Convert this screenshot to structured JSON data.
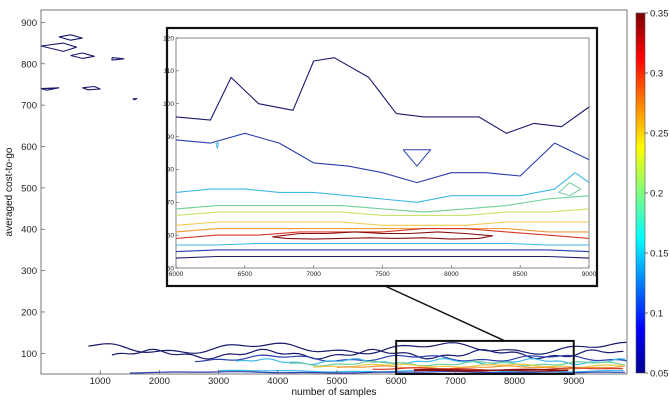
{
  "chart_data": {
    "type": "contour",
    "title": "",
    "xlabel": "number of samples",
    "ylabel": "averaged cost-to-go",
    "xlim": [
      0,
      9900
    ],
    "ylim": [
      50,
      930
    ],
    "x_ticks": [
      "1000",
      "2000",
      "3000",
      "4000",
      "5000",
      "6000",
      "7000",
      "8000",
      "9000"
    ],
    "y_ticks": [
      "100",
      "200",
      "300",
      "400",
      "500",
      "600",
      "700",
      "800",
      "900"
    ],
    "colorbar": {
      "colormap": "jet",
      "range": [
        0.05,
        0.35
      ],
      "ticks": [
        "0.05",
        "0.1",
        "0.15",
        "0.2",
        "0.25",
        "0.3",
        "0.35"
      ]
    },
    "zoom_region": {
      "x": [
        6000,
        9000
      ],
      "y": [
        50,
        130
      ]
    },
    "inset": {
      "xlim": [
        6000,
        9000
      ],
      "ylim": [
        50,
        120
      ],
      "x_ticks": [
        "6000",
        "6500",
        "7000",
        "7500",
        "8000",
        "8500",
        "9000"
      ],
      "y_ticks": [
        "50",
        "60",
        "70",
        "80",
        "90",
        "100",
        "110",
        "120"
      ],
      "contours": [
        {
          "level": 0.05,
          "color": "#1a1a6e",
          "x": [
            6000,
            6250,
            6400,
            6600,
            6850,
            7000,
            7150,
            7400,
            7600,
            7800,
            8000,
            8200,
            8400,
            8600,
            8800,
            9000
          ],
          "y": [
            96,
            95,
            108,
            100,
            98,
            113,
            114,
            108,
            97,
            96,
            96,
            96,
            91,
            94,
            93,
            99
          ]
        },
        {
          "level": 0.07,
          "color": "#2a3fb0",
          "x": [
            6000,
            6250,
            6500,
            6750,
            7000,
            7250,
            7500,
            7750,
            8000,
            8250,
            8500,
            8750,
            9000
          ],
          "y": [
            89,
            88,
            91,
            88,
            82,
            81,
            79,
            76,
            79,
            79,
            78,
            88,
            83
          ]
        },
        {
          "level": 0.1,
          "color": "#3fb9e6",
          "x": [
            6000,
            6250,
            6500,
            6750,
            7000,
            7250,
            7500,
            7750,
            8000,
            8250,
            8500,
            8750,
            8900,
            9000
          ],
          "y": [
            73,
            74,
            74,
            73,
            73,
            72,
            71,
            70,
            72,
            72,
            72,
            74,
            79,
            76
          ]
        },
        {
          "level": 0.14,
          "color": "#6fcf9a",
          "x": [
            6000,
            6300,
            6600,
            6900,
            7200,
            7500,
            7800,
            8100,
            8400,
            8700,
            9000
          ],
          "y": [
            68,
            69,
            69,
            69,
            69,
            68,
            67,
            68,
            69,
            71,
            72
          ]
        },
        {
          "level": 0.19,
          "color": "#c9e36a",
          "x": [
            6000,
            6300,
            6600,
            6900,
            7200,
            7500,
            7800,
            8100,
            8400,
            8700,
            9000
          ],
          "y": [
            66,
            67,
            67,
            67,
            67,
            66,
            66,
            66,
            67,
            67,
            68
          ]
        },
        {
          "level": 0.23,
          "color": "#f2c94a",
          "x": [
            6000,
            6300,
            6600,
            6900,
            7200,
            7500,
            7800,
            8100,
            8400,
            8700,
            9000
          ],
          "y": [
            63,
            64,
            64,
            64,
            64,
            63,
            63,
            63,
            64,
            64,
            64
          ]
        },
        {
          "level": 0.27,
          "color": "#f29a3a",
          "x": [
            6000,
            6300,
            6600,
            6900,
            7200,
            7500,
            7800,
            8100,
            8400,
            8700,
            9000
          ],
          "y": [
            61,
            62,
            62,
            62,
            62,
            62,
            62,
            62,
            62,
            61,
            61
          ]
        },
        {
          "level": 0.31,
          "color": "#d83a2a",
          "x": [
            6000,
            6300,
            6600,
            6900,
            7200,
            7500,
            7800,
            8100,
            8400,
            8700,
            9000
          ],
          "y": [
            59,
            60,
            60,
            61,
            61,
            61,
            62,
            62,
            61,
            60,
            59
          ]
        },
        {
          "level": 0.33,
          "color": "#8a1010",
          "x": [
            6700,
            6900,
            7100,
            7300,
            7500,
            7700,
            7900,
            8100,
            8300,
            8200,
            8000,
            7800,
            7600,
            7400,
            7200,
            7000,
            6800,
            6700
          ],
          "y": [
            59.5,
            60.5,
            60.5,
            61,
            60.5,
            60.5,
            61,
            60.5,
            59.8,
            59,
            58.8,
            59.2,
            59,
            59.2,
            59,
            58.8,
            59,
            59.5
          ]
        },
        {
          "level": 0.12,
          "color": "#3fb9e6",
          "x": [
            6000,
            6300,
            6600,
            6900,
            7200,
            7500,
            7800,
            8100,
            8400,
            8700,
            9000
          ],
          "y": [
            57,
            57,
            57.5,
            57.5,
            57.5,
            57.5,
            57.5,
            57.5,
            57.5,
            57,
            57
          ]
        },
        {
          "level": 0.09,
          "color": "#2a3fb0",
          "x": [
            6000,
            6300,
            6600,
            6900,
            7200,
            7500,
            7800,
            8100,
            8400,
            8700,
            9000
          ],
          "y": [
            55,
            55.5,
            55.5,
            55.5,
            55.5,
            55.5,
            55.5,
            55.5,
            55.5,
            55.5,
            55
          ]
        },
        {
          "level": 0.06,
          "color": "#1a1a6e",
          "x": [
            6000,
            6300,
            6600,
            6900,
            7200,
            7500,
            7800,
            8100,
            8400,
            8700,
            9000
          ],
          "y": [
            53,
            53.5,
            53.5,
            53.5,
            53.5,
            53.5,
            53.5,
            53.5,
            53.5,
            53.5,
            53
          ]
        }
      ],
      "islands": [
        {
          "color": "#2a3fb0",
          "x": [
            7650,
            7750,
            7850,
            7750,
            7650
          ],
          "y": [
            86,
            86,
            86,
            81,
            86
          ]
        },
        {
          "color": "#3fb9e6",
          "x": [
            6290,
            6310,
            6300,
            6290
          ],
          "y": [
            88,
            88,
            86.5,
            88
          ]
        },
        {
          "color": "#6fcf9a",
          "x": [
            8780,
            8860,
            8940,
            8860,
            8780
          ],
          "y": [
            73,
            76,
            74,
            72,
            73
          ]
        }
      ]
    }
  }
}
